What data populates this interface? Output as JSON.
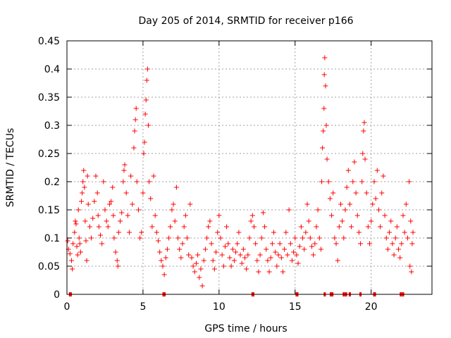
{
  "chart_data": {
    "type": "scatter",
    "title": "Day 205 of 2014, SRMTID for receiver p166",
    "xlabel": "GPS time / hours",
    "ylabel": "SRMTID / TECUs",
    "xlim": [
      0,
      24
    ],
    "ylim": [
      0,
      0.45
    ],
    "xticks": [
      0,
      5,
      10,
      15,
      20
    ],
    "xtick_labels": [
      "0",
      "5",
      "10",
      "15",
      "20"
    ],
    "yticks": [
      0,
      0.05,
      0.1,
      0.15,
      0.2,
      0.25,
      0.3,
      0.35,
      0.4,
      0.45
    ],
    "ytick_labels": [
      "0",
      "0.05",
      "0.1",
      "0.15",
      "0.2",
      "0.25",
      "0.3",
      "0.35",
      "0.4",
      "0.45"
    ],
    "grid": true,
    "marker": "+",
    "color": "#ff0000",
    "series": [
      {
        "name": "SRMTID",
        "points": [
          [
            0.05,
            0.095
          ],
          [
            0.1,
            0.08
          ],
          [
            0.2,
            0.072
          ],
          [
            0.3,
            0.06
          ],
          [
            0.35,
            0.045
          ],
          [
            0.4,
            0.09
          ],
          [
            0.5,
            0.11
          ],
          [
            0.55,
            0.13
          ],
          [
            0.6,
            0.125
          ],
          [
            0.65,
            0.085
          ],
          [
            0.7,
            0.07
          ],
          [
            0.75,
            0.15
          ],
          [
            0.8,
            0.1
          ],
          [
            0.85,
            0.09
          ],
          [
            0.9,
            0.075
          ],
          [
            0.95,
            0.165
          ],
          [
            1.0,
            0.18
          ],
          [
            1.05,
            0.2
          ],
          [
            1.1,
            0.22
          ],
          [
            1.15,
            0.19
          ],
          [
            1.2,
            0.13
          ],
          [
            1.25,
            0.095
          ],
          [
            1.3,
            0.06
          ],
          [
            1.35,
            0.21
          ],
          [
            1.4,
            0.16
          ],
          [
            1.5,
            0.12
          ],
          [
            1.6,
            0.1
          ],
          [
            1.7,
            0.135
          ],
          [
            1.8,
            0.165
          ],
          [
            1.9,
            0.21
          ],
          [
            2.0,
            0.18
          ],
          [
            2.05,
            0.14
          ],
          [
            2.1,
            0.12
          ],
          [
            2.2,
            0.105
          ],
          [
            2.3,
            0.09
          ],
          [
            2.4,
            0.2
          ],
          [
            2.5,
            0.15
          ],
          [
            2.6,
            0.13
          ],
          [
            2.7,
            0.12
          ],
          [
            2.8,
            0.16
          ],
          [
            2.9,
            0.165
          ],
          [
            3.0,
            0.19
          ],
          [
            3.05,
            0.14
          ],
          [
            3.1,
            0.1
          ],
          [
            3.2,
            0.075
          ],
          [
            3.3,
            0.06
          ],
          [
            3.35,
            0.05
          ],
          [
            3.4,
            0.11
          ],
          [
            3.5,
            0.13
          ],
          [
            3.6,
            0.145
          ],
          [
            3.7,
            0.2
          ],
          [
            3.75,
            0.22
          ],
          [
            3.8,
            0.23
          ],
          [
            3.9,
            0.18
          ],
          [
            4.0,
            0.14
          ],
          [
            4.1,
            0.11
          ],
          [
            4.2,
            0.21
          ],
          [
            4.3,
            0.16
          ],
          [
            4.4,
            0.26
          ],
          [
            4.45,
            0.29
          ],
          [
            4.5,
            0.31
          ],
          [
            4.55,
            0.33
          ],
          [
            4.6,
            0.2
          ],
          [
            4.7,
            0.15
          ],
          [
            4.8,
            0.1
          ],
          [
            4.9,
            0.11
          ],
          [
            5.0,
            0.18
          ],
          [
            5.05,
            0.25
          ],
          [
            5.1,
            0.27
          ],
          [
            5.15,
            0.32
          ],
          [
            5.2,
            0.345
          ],
          [
            5.25,
            0.38
          ],
          [
            5.3,
            0.4
          ],
          [
            5.35,
            0.3
          ],
          [
            5.4,
            0.2
          ],
          [
            5.5,
            0.17
          ],
          [
            5.6,
            0.12
          ],
          [
            5.7,
            0.21
          ],
          [
            5.8,
            0.14
          ],
          [
            5.9,
            0.11
          ],
          [
            6.0,
            0.095
          ],
          [
            6.1,
            0.075
          ],
          [
            6.2,
            0.06
          ],
          [
            6.3,
            0.05
          ],
          [
            6.4,
            0.035
          ],
          [
            6.5,
            0.065
          ],
          [
            6.6,
            0.08
          ],
          [
            6.7,
            0.1
          ],
          [
            6.8,
            0.12
          ],
          [
            6.9,
            0.15
          ],
          [
            7.0,
            0.16
          ],
          [
            7.1,
            0.13
          ],
          [
            7.2,
            0.19
          ],
          [
            7.3,
            0.1
          ],
          [
            7.4,
            0.08
          ],
          [
            7.5,
            0.065
          ],
          [
            7.6,
            0.09
          ],
          [
            7.7,
            0.12
          ],
          [
            7.8,
            0.14
          ],
          [
            7.9,
            0.1
          ],
          [
            8.0,
            0.07
          ],
          [
            8.1,
            0.16
          ],
          [
            8.2,
            0.065
          ],
          [
            8.3,
            0.05
          ],
          [
            8.4,
            0.04
          ],
          [
            8.5,
            0.055
          ],
          [
            8.6,
            0.07
          ],
          [
            8.7,
            0.03
          ],
          [
            8.8,
            0.045
          ],
          [
            8.9,
            0.015
          ],
          [
            9.0,
            0.06
          ],
          [
            9.1,
            0.08
          ],
          [
            9.2,
            0.1
          ],
          [
            9.3,
            0.12
          ],
          [
            9.4,
            0.13
          ],
          [
            9.5,
            0.09
          ],
          [
            9.6,
            0.06
          ],
          [
            9.7,
            0.045
          ],
          [
            9.8,
            0.075
          ],
          [
            9.9,
            0.11
          ],
          [
            10.0,
            0.14
          ],
          [
            10.1,
            0.1
          ],
          [
            10.2,
            0.07
          ],
          [
            10.3,
            0.05
          ],
          [
            10.4,
            0.085
          ],
          [
            10.5,
            0.12
          ],
          [
            10.6,
            0.09
          ],
          [
            10.7,
            0.065
          ],
          [
            10.8,
            0.05
          ],
          [
            10.9,
            0.08
          ],
          [
            11.0,
            0.06
          ],
          [
            11.1,
            0.075
          ],
          [
            11.2,
            0.09
          ],
          [
            11.3,
            0.11
          ],
          [
            11.4,
            0.07
          ],
          [
            11.5,
            0.055
          ],
          [
            11.6,
            0.08
          ],
          [
            11.7,
            0.065
          ],
          [
            11.8,
            0.045
          ],
          [
            11.9,
            0.07
          ],
          [
            12.0,
            0.1
          ],
          [
            12.1,
            0.13
          ],
          [
            12.2,
            0.14
          ],
          [
            12.3,
            0.12
          ],
          [
            12.4,
            0.09
          ],
          [
            12.5,
            0.06
          ],
          [
            12.6,
            0.04
          ],
          [
            12.7,
            0.07
          ],
          [
            12.8,
            0.1
          ],
          [
            12.9,
            0.145
          ],
          [
            13.0,
            0.12
          ],
          [
            13.1,
            0.08
          ],
          [
            13.2,
            0.06
          ],
          [
            13.3,
            0.04
          ],
          [
            13.4,
            0.065
          ],
          [
            13.5,
            0.09
          ],
          [
            13.6,
            0.11
          ],
          [
            13.7,
            0.075
          ],
          [
            13.8,
            0.05
          ],
          [
            13.9,
            0.07
          ],
          [
            14.0,
            0.09
          ],
          [
            14.1,
            0.065
          ],
          [
            14.2,
            0.04
          ],
          [
            14.3,
            0.08
          ],
          [
            14.4,
            0.11
          ],
          [
            14.5,
            0.07
          ],
          [
            14.6,
            0.15
          ],
          [
            14.7,
            0.09
          ],
          [
            14.8,
            0.06
          ],
          [
            14.9,
            0.075
          ],
          [
            15.0,
            0.1
          ],
          [
            15.1,
            0.07
          ],
          [
            15.2,
            0.055
          ],
          [
            15.3,
            0.085
          ],
          [
            15.4,
            0.12
          ],
          [
            15.5,
            0.1
          ],
          [
            15.6,
            0.08
          ],
          [
            15.7,
            0.11
          ],
          [
            15.8,
            0.16
          ],
          [
            15.9,
            0.13
          ],
          [
            16.0,
            0.1
          ],
          [
            16.1,
            0.085
          ],
          [
            16.2,
            0.07
          ],
          [
            16.3,
            0.09
          ],
          [
            16.4,
            0.12
          ],
          [
            16.5,
            0.15
          ],
          [
            16.6,
            0.1
          ],
          [
            16.7,
            0.08
          ],
          [
            16.75,
            0.2
          ],
          [
            16.8,
            0.26
          ],
          [
            16.85,
            0.29
          ],
          [
            16.9,
            0.33
          ],
          [
            16.92,
            0.39
          ],
          [
            16.95,
            0.42
          ],
          [
            17.0,
            0.37
          ],
          [
            17.05,
            0.3
          ],
          [
            17.1,
            0.24
          ],
          [
            17.2,
            0.2
          ],
          [
            17.3,
            0.17
          ],
          [
            17.4,
            0.14
          ],
          [
            17.5,
            0.18
          ],
          [
            17.6,
            0.1
          ],
          [
            17.7,
            0.09
          ],
          [
            17.8,
            0.06
          ],
          [
            17.9,
            0.12
          ],
          [
            18.0,
            0.16
          ],
          [
            18.1,
            0.13
          ],
          [
            18.2,
            0.1
          ],
          [
            18.3,
            0.15
          ],
          [
            18.4,
            0.19
          ],
          [
            18.5,
            0.22
          ],
          [
            18.6,
            0.16
          ],
          [
            18.7,
            0.12
          ],
          [
            18.8,
            0.2
          ],
          [
            18.9,
            0.235
          ],
          [
            19.0,
            0.18
          ],
          [
            19.1,
            0.14
          ],
          [
            19.2,
            0.11
          ],
          [
            19.3,
            0.09
          ],
          [
            19.4,
            0.2
          ],
          [
            19.45,
            0.25
          ],
          [
            19.5,
            0.29
          ],
          [
            19.55,
            0.305
          ],
          [
            19.6,
            0.24
          ],
          [
            19.7,
            0.18
          ],
          [
            19.8,
            0.12
          ],
          [
            19.9,
            0.09
          ],
          [
            20.0,
            0.13
          ],
          [
            20.1,
            0.16
          ],
          [
            20.2,
            0.2
          ],
          [
            20.3,
            0.17
          ],
          [
            20.4,
            0.22
          ],
          [
            20.5,
            0.15
          ],
          [
            20.6,
            0.12
          ],
          [
            20.7,
            0.18
          ],
          [
            20.8,
            0.21
          ],
          [
            20.9,
            0.14
          ],
          [
            21.0,
            0.1
          ],
          [
            21.1,
            0.08
          ],
          [
            21.2,
            0.11
          ],
          [
            21.3,
            0.13
          ],
          [
            21.4,
            0.09
          ],
          [
            21.5,
            0.07
          ],
          [
            21.6,
            0.1
          ],
          [
            21.7,
            0.12
          ],
          [
            21.8,
            0.08
          ],
          [
            21.9,
            0.065
          ],
          [
            22.0,
            0.09
          ],
          [
            22.1,
            0.14
          ],
          [
            22.2,
            0.11
          ],
          [
            22.3,
            0.16
          ],
          [
            22.4,
            0.1
          ],
          [
            22.5,
            0.2
          ],
          [
            22.55,
            0.05
          ],
          [
            22.6,
            0.13
          ],
          [
            22.65,
            0.04
          ],
          [
            22.7,
            0.09
          ],
          [
            22.75,
            0.11
          ]
        ]
      }
    ],
    "gap_markers_x": [
      0.2,
      0.25,
      6.35,
      6.42,
      12.2,
      12.25,
      15.1,
      15.15,
      16.95,
      17.35,
      17.45,
      18.2,
      18.35,
      18.6,
      19.3,
      20.2,
      20.25,
      21.95,
      22.1
    ]
  }
}
